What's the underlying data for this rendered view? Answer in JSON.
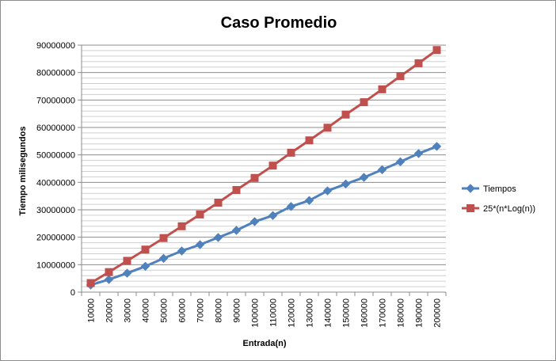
{
  "chart_data": {
    "type": "line",
    "title": "Caso Promedio",
    "xlabel": "Entrada(n)",
    "ylabel": "Tiempo milisegundos",
    "categories": [
      "10000",
      "20000",
      "30000",
      "40000",
      "50000",
      "60000",
      "70000",
      "80000",
      "90000",
      "100000",
      "110000",
      "120000",
      "130000",
      "140000",
      "150000",
      "160000",
      "170000",
      "180000",
      "190000",
      "200000"
    ],
    "yticks": [
      "0",
      "10000000",
      "20000000",
      "30000000",
      "40000000",
      "50000000",
      "60000000",
      "70000000",
      "80000000",
      "90000000"
    ],
    "ylim": [
      0,
      90000000
    ],
    "grid": true,
    "legend_position": "right",
    "series": [
      {
        "name": "Tiempos",
        "color": "#4f81bd",
        "marker": "diamond",
        "values": [
          2600000,
          4600000,
          6900000,
          9400000,
          12300000,
          15000000,
          17300000,
          19900000,
          22500000,
          25700000,
          27900000,
          31200000,
          33400000,
          36900000,
          39400000,
          41800000,
          44600000,
          47500000,
          50500000,
          53100000
        ]
      },
      {
        "name": "25*(n*Log(n))",
        "color": "#c0504d",
        "marker": "square",
        "values": [
          3300000,
          7300000,
          11400000,
          15500000,
          19700000,
          24000000,
          28300000,
          32600000,
          37200000,
          41600000,
          46100000,
          50800000,
          55300000,
          59900000,
          64700000,
          69200000,
          73900000,
          78700000,
          83400000,
          88200000
        ]
      }
    ]
  }
}
